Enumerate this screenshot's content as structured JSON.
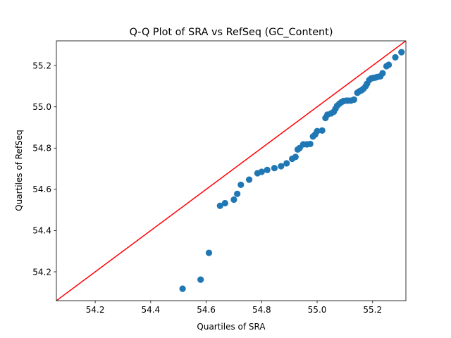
{
  "chart_data": {
    "type": "scatter",
    "title": "Q-Q Plot of SRA vs RefSeq (GC_Content)",
    "xlabel": "Quartiles of SRA",
    "ylabel": "Quartiles of RefSeq",
    "xlim": [
      54.06,
      55.32
    ],
    "ylim": [
      54.06,
      55.32
    ],
    "xticks": [
      "54.2",
      "54.4",
      "54.6",
      "54.8",
      "55.0",
      "55.2"
    ],
    "yticks": [
      "54.2",
      "54.4",
      "54.6",
      "54.8",
      "55.0",
      "55.2"
    ],
    "grid": false,
    "reference_line": {
      "description": "y = x",
      "color": "#ff0000"
    },
    "marker_color": "#1f77b4",
    "points": [
      [
        54.515,
        54.118
      ],
      [
        54.58,
        54.162
      ],
      [
        54.61,
        54.292
      ],
      [
        54.65,
        54.52
      ],
      [
        54.668,
        54.533
      ],
      [
        54.7,
        54.55
      ],
      [
        54.712,
        54.578
      ],
      [
        54.725,
        54.622
      ],
      [
        54.755,
        54.647
      ],
      [
        54.785,
        54.678
      ],
      [
        54.8,
        54.685
      ],
      [
        54.82,
        54.694
      ],
      [
        54.846,
        54.703
      ],
      [
        54.87,
        54.712
      ],
      [
        54.89,
        54.726
      ],
      [
        54.91,
        54.748
      ],
      [
        54.922,
        54.757
      ],
      [
        54.93,
        54.793
      ],
      [
        54.937,
        54.8
      ],
      [
        54.95,
        54.818
      ],
      [
        54.963,
        54.818
      ],
      [
        54.975,
        54.82
      ],
      [
        54.985,
        54.856
      ],
      [
        54.993,
        54.866
      ],
      [
        55.0,
        54.882
      ],
      [
        55.018,
        54.885
      ],
      [
        55.03,
        54.946
      ],
      [
        55.037,
        54.962
      ],
      [
        55.05,
        54.968
      ],
      [
        55.06,
        54.976
      ],
      [
        55.066,
        54.99
      ],
      [
        55.072,
        55.005
      ],
      [
        55.08,
        55.015
      ],
      [
        55.087,
        55.022
      ],
      [
        55.095,
        55.028
      ],
      [
        55.105,
        55.03
      ],
      [
        55.112,
        55.03
      ],
      [
        55.122,
        55.03
      ],
      [
        55.133,
        55.035
      ],
      [
        55.145,
        55.068
      ],
      [
        55.152,
        55.075
      ],
      [
        55.16,
        55.08
      ],
      [
        55.167,
        55.088
      ],
      [
        55.175,
        55.1
      ],
      [
        55.18,
        55.112
      ],
      [
        55.188,
        55.13
      ],
      [
        55.195,
        55.138
      ],
      [
        55.202,
        55.14
      ],
      [
        55.21,
        55.142
      ],
      [
        55.218,
        55.145
      ],
      [
        55.228,
        55.148
      ],
      [
        55.236,
        55.163
      ],
      [
        55.25,
        55.197
      ],
      [
        55.258,
        55.204
      ],
      [
        55.282,
        55.24
      ],
      [
        55.304,
        55.265
      ]
    ]
  }
}
